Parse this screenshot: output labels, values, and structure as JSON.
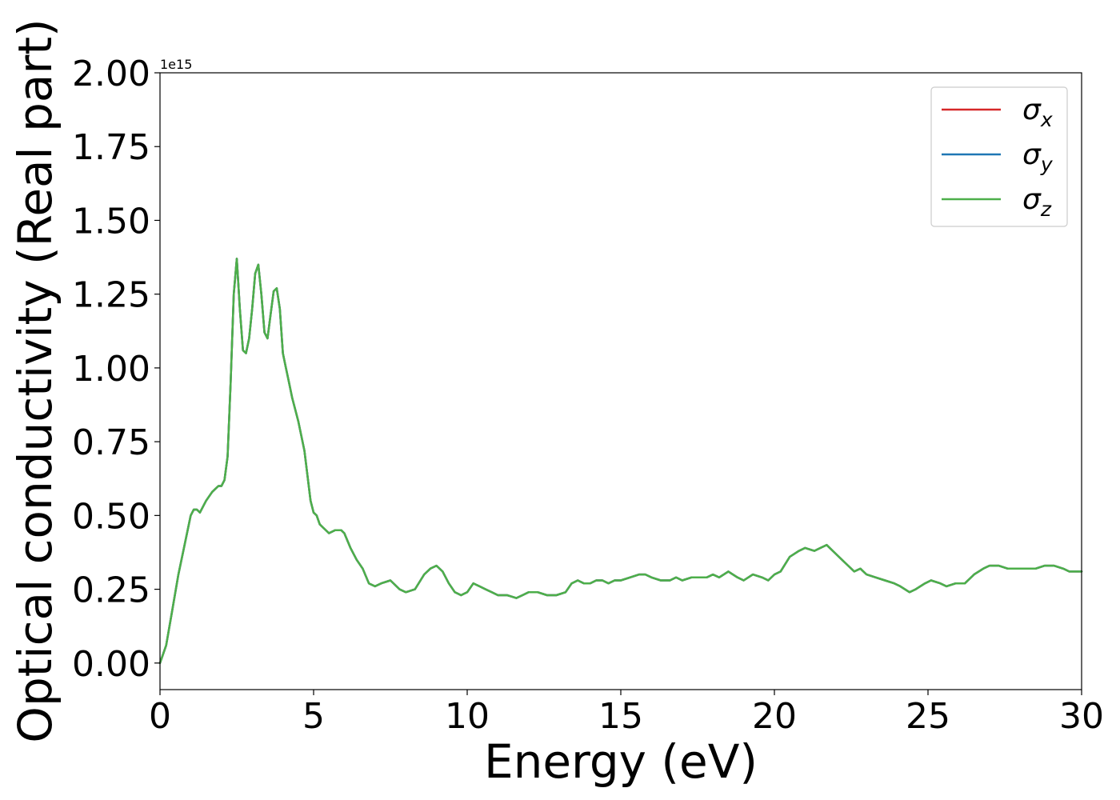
{
  "chart_data": {
    "type": "line",
    "xlabel": "Energy (eV)",
    "ylabel": "Optical conductivity (Real part)",
    "offset_text": "1e15",
    "xlim": [
      0,
      30
    ],
    "ylim": [
      -0.09,
      2.0
    ],
    "y_scale_factor": "1e15",
    "x_ticks": [
      0,
      5,
      10,
      15,
      20,
      25,
      30
    ],
    "x_tick_labels": [
      "0",
      "5",
      "10",
      "15",
      "20",
      "25",
      "30"
    ],
    "y_ticks": [
      0.0,
      0.25,
      0.5,
      0.75,
      1.0,
      1.25,
      1.5,
      1.75,
      2.0
    ],
    "y_tick_labels": [
      "0.00",
      "0.25",
      "0.50",
      "0.75",
      "1.00",
      "1.25",
      "1.50",
      "1.75",
      "2.00"
    ],
    "grid": false,
    "legend_position": "top-right",
    "series": [
      {
        "name": "σ",
        "subscript": "x",
        "color": "#d62728"
      },
      {
        "name": "σ",
        "subscript": "y",
        "color": "#1f77b4"
      },
      {
        "name": "σ",
        "subscript": "z",
        "color": "#4daf4a"
      }
    ],
    "x": [
      0,
      0.2,
      0.4,
      0.6,
      0.8,
      1.0,
      1.1,
      1.2,
      1.3,
      1.5,
      1.7,
      1.9,
      2.0,
      2.1,
      2.2,
      2.3,
      2.4,
      2.5,
      2.6,
      2.7,
      2.8,
      2.9,
      3.0,
      3.1,
      3.2,
      3.3,
      3.4,
      3.5,
      3.6,
      3.7,
      3.8,
      3.9,
      4.0,
      4.1,
      4.2,
      4.3,
      4.5,
      4.7,
      4.9,
      5.0,
      5.1,
      5.2,
      5.3,
      5.5,
      5.7,
      5.9,
      6.0,
      6.2,
      6.4,
      6.6,
      6.8,
      7.0,
      7.2,
      7.5,
      7.8,
      8.0,
      8.3,
      8.6,
      8.8,
      9.0,
      9.2,
      9.4,
      9.6,
      9.8,
      10.0,
      10.2,
      10.4,
      10.6,
      10.8,
      11.0,
      11.3,
      11.6,
      11.8,
      12.0,
      12.3,
      12.6,
      12.9,
      13.2,
      13.4,
      13.6,
      13.8,
      14.0,
      14.2,
      14.4,
      14.6,
      14.8,
      15.0,
      15.3,
      15.6,
      15.8,
      16.0,
      16.3,
      16.6,
      16.8,
      17.0,
      17.3,
      17.6,
      17.8,
      18.0,
      18.2,
      18.5,
      18.8,
      19.0,
      19.3,
      19.6,
      19.8,
      20.0,
      20.2,
      20.5,
      20.8,
      21.0,
      21.3,
      21.5,
      21.7,
      21.9,
      22.1,
      22.4,
      22.6,
      22.8,
      23.0,
      23.3,
      23.6,
      23.9,
      24.1,
      24.4,
      24.6,
      24.9,
      25.1,
      25.4,
      25.6,
      25.9,
      26.2,
      26.5,
      26.8,
      27.0,
      27.3,
      27.6,
      27.9,
      28.2,
      28.5,
      28.8,
      29.1,
      29.4,
      29.6,
      29.8,
      30.0
    ],
    "y": [
      0.0,
      0.06,
      0.18,
      0.3,
      0.4,
      0.5,
      0.52,
      0.52,
      0.51,
      0.55,
      0.58,
      0.6,
      0.6,
      0.62,
      0.7,
      0.95,
      1.25,
      1.37,
      1.2,
      1.06,
      1.05,
      1.1,
      1.2,
      1.32,
      1.35,
      1.25,
      1.12,
      1.1,
      1.18,
      1.26,
      1.27,
      1.2,
      1.05,
      1.0,
      0.95,
      0.9,
      0.82,
      0.72,
      0.55,
      0.51,
      0.5,
      0.47,
      0.46,
      0.44,
      0.45,
      0.45,
      0.44,
      0.39,
      0.35,
      0.32,
      0.27,
      0.26,
      0.27,
      0.28,
      0.25,
      0.24,
      0.25,
      0.3,
      0.32,
      0.33,
      0.31,
      0.27,
      0.24,
      0.23,
      0.24,
      0.27,
      0.26,
      0.25,
      0.24,
      0.23,
      0.23,
      0.22,
      0.23,
      0.24,
      0.24,
      0.23,
      0.23,
      0.24,
      0.27,
      0.28,
      0.27,
      0.27,
      0.28,
      0.28,
      0.27,
      0.28,
      0.28,
      0.29,
      0.3,
      0.3,
      0.29,
      0.28,
      0.28,
      0.29,
      0.28,
      0.29,
      0.29,
      0.29,
      0.3,
      0.29,
      0.31,
      0.29,
      0.28,
      0.3,
      0.29,
      0.28,
      0.3,
      0.31,
      0.36,
      0.38,
      0.39,
      0.38,
      0.39,
      0.4,
      0.38,
      0.36,
      0.33,
      0.31,
      0.32,
      0.3,
      0.29,
      0.28,
      0.27,
      0.26,
      0.24,
      0.25,
      0.27,
      0.28,
      0.27,
      0.26,
      0.27,
      0.27,
      0.3,
      0.32,
      0.33,
      0.33,
      0.32,
      0.32,
      0.32,
      0.32,
      0.33,
      0.33,
      0.32,
      0.31,
      0.31,
      0.31
    ]
  }
}
